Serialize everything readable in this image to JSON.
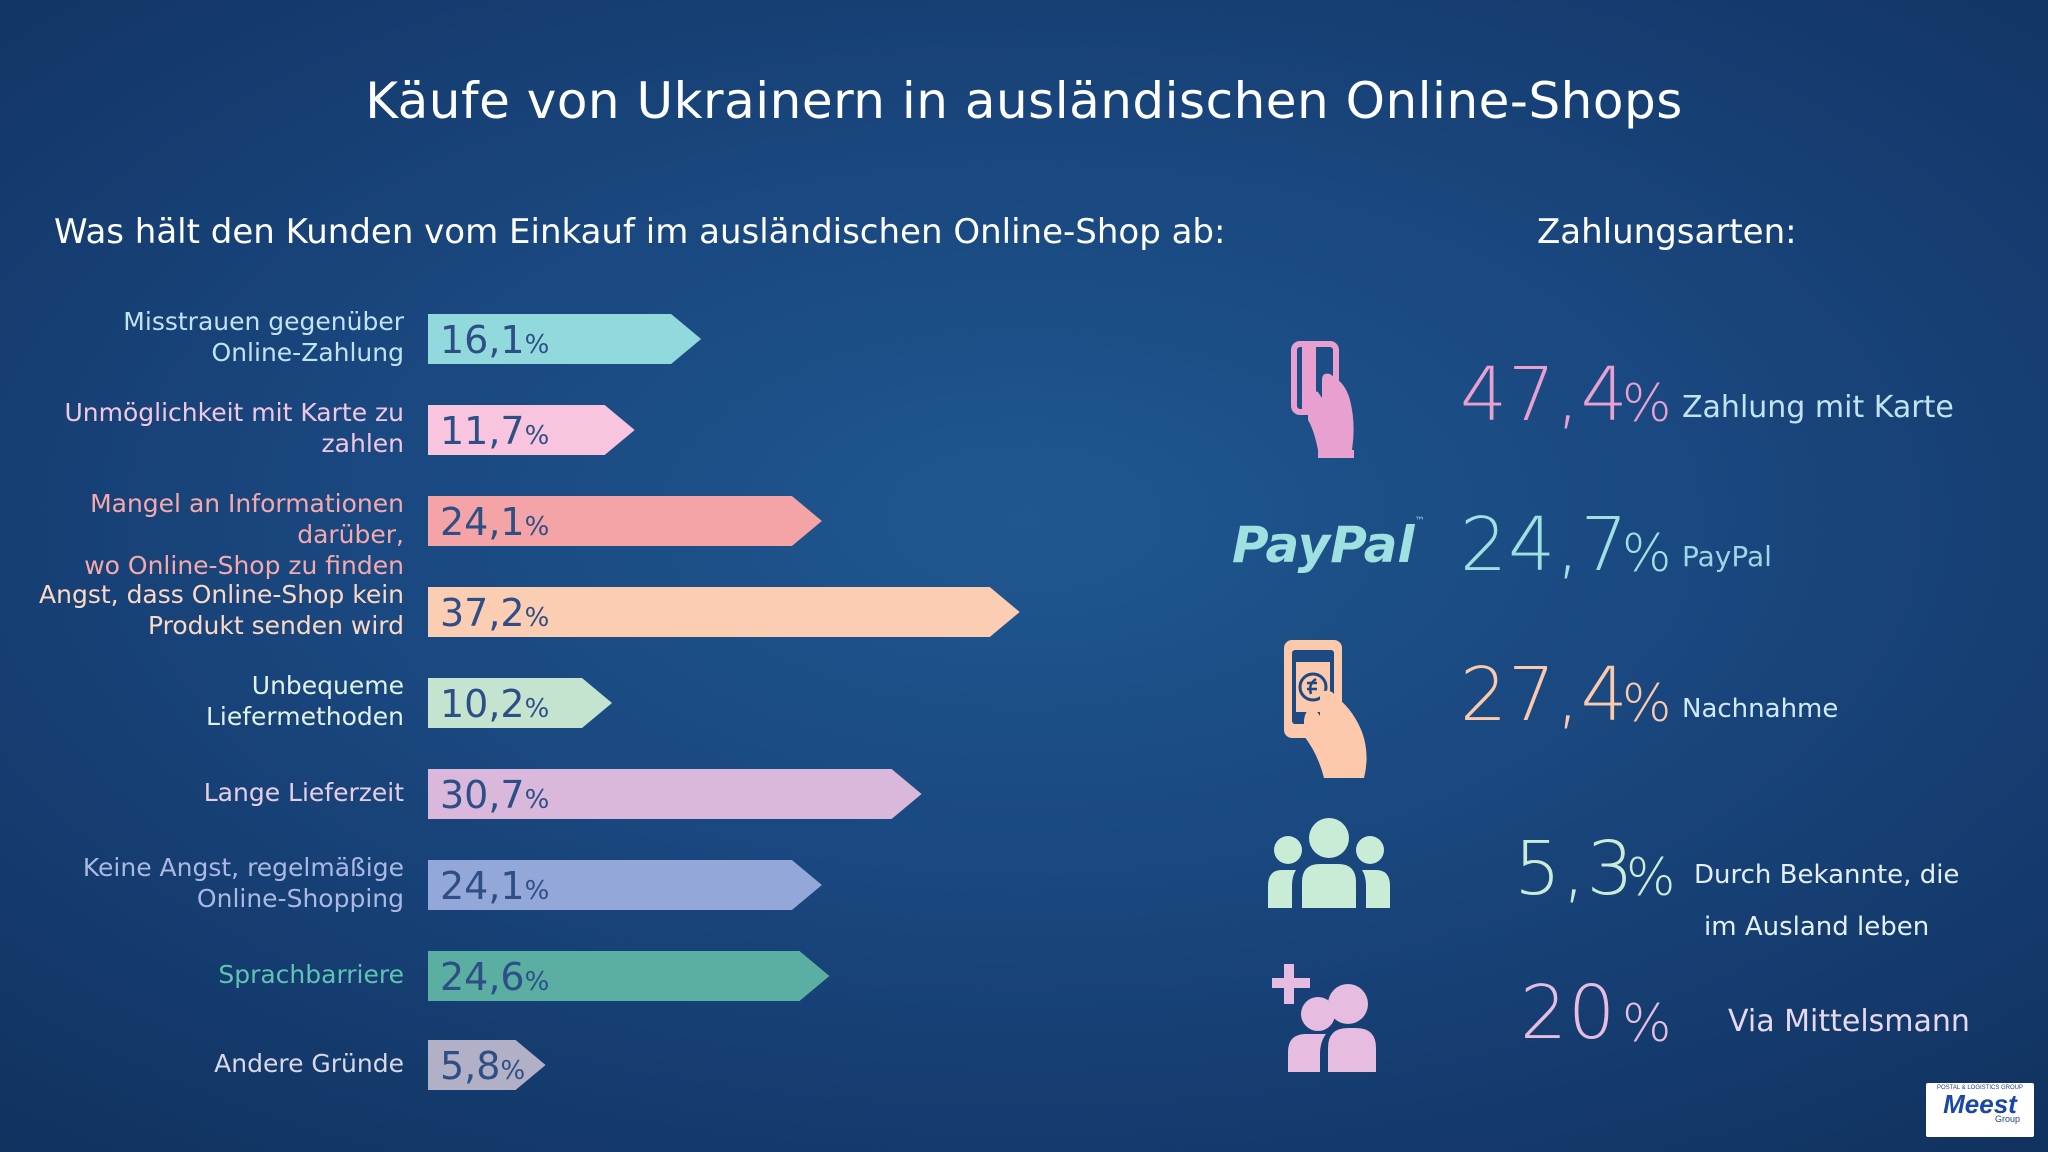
{
  "title": "Käufe von Ukrainern in ausländischen Online-Shops",
  "left_heading": "Was hält den Kunden vom Einkauf im ausländischen Online-Shop ab:",
  "right_heading": "Zahlungsarten:",
  "chart_data": {
    "type": "bar",
    "orientation": "horizontal",
    "categories": [
      "Misstrauen gegenüber Online-Zahlung",
      "Unmöglichkeit mit  Karte zu zahlen",
      "Mangel an Informationen darüber, wo Online-Shop zu finden",
      "Angst, dass Online-Shop kein Produkt senden wird",
      "Unbequeme Liefermethoden",
      "Lange Lieferzeit",
      "Keine Angst, regelmäßige Online-Shopping",
      "Sprachbarriere",
      "Andere Gründe"
    ],
    "values": [
      16.1,
      11.7,
      24.1,
      37.2,
      10.2,
      30.7,
      24.1,
      24.6,
      5.8
    ],
    "value_labels": [
      "16,1",
      "11,7",
      "24,1",
      "37,2",
      "10,2",
      "30,7",
      "24,1",
      "24,6",
      "5,8"
    ],
    "unit": "%",
    "label_lines": [
      [
        "Misstrauen gegenüber",
        "Online-Zahlung"
      ],
      [
        "Unmöglichkeit mit  Karte zu",
        "zahlen"
      ],
      [
        "Mangel an Informationen darüber,",
        "wo Online-Shop zu finden"
      ],
      [
        "Angst, dass Online-Shop kein",
        "Produkt senden wird"
      ],
      [
        "Unbequeme",
        "Liefermethoden"
      ],
      [
        "Lange Lieferzeit"
      ],
      [
        "Keine Angst, regelmäßige",
        "Online-Shopping"
      ],
      [
        "Sprachbarriere"
      ],
      [
        "Andere Gründe"
      ]
    ],
    "colors": [
      "#91d9dc",
      "#f8c4de",
      "#f4a3a6",
      "#fbcdb3",
      "#c4e4cf",
      "#d9b8dc",
      "#93a8d8",
      "#5aaea2",
      "#b2b0c6"
    ],
    "label_colors": [
      "#bfe3f0",
      "#f2c7e4",
      "#f5a9ad",
      "#fcd9c4",
      "#e0f3e7",
      "#e6cde8",
      "#aab8e3",
      "#5fc4b3",
      "#d8d8e6"
    ],
    "value_color": "#2d4f86",
    "xlim": [
      0,
      40
    ]
  },
  "payments": [
    {
      "value": "47,4",
      "pct": "%",
      "label": "Zahlung mit Karte",
      "color": "#e8a0d0",
      "label_color": "#bfe4f0",
      "icon": "card-hand-icon"
    },
    {
      "value": "24,7",
      "pct": "%",
      "label": "PayPal",
      "color": "#9fe0e0",
      "label_color": "#9fd6e6",
      "icon": "paypal-logo",
      "logo_text": "PayPal",
      "logo_tm": "™"
    },
    {
      "value": "27,4",
      "pct": "%",
      "label": "Nachnahme",
      "color": "#fcc9ad",
      "label_color": "#cfeaf4",
      "icon": "phone-cash-hand-icon"
    },
    {
      "value": "5,3",
      "pct": "%",
      "label_lines": [
        "Durch Bekannte, die",
        "im Ausland leben"
      ],
      "color": "#c9ecd6",
      "label_color": "#e2f0f4",
      "icon": "group-people-icon"
    },
    {
      "value": "20",
      "pct": "%",
      "label": "Via Mittelsmann",
      "color": "#e6bde0",
      "label_color": "#e6d8ee",
      "icon": "add-person-icon"
    }
  ],
  "logo": {
    "top": "POSTAL & LOGISTICS GROUP",
    "brand": "Meest",
    "bottom": "Group"
  }
}
